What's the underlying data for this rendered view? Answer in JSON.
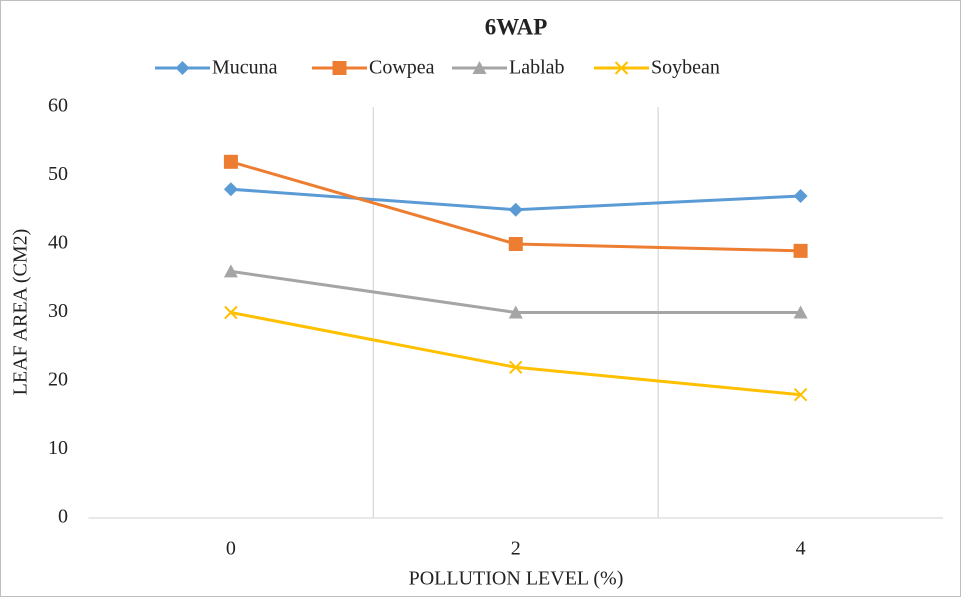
{
  "chart_data": {
    "type": "line",
    "title": "6WAP",
    "x_label": "POLLUTION LEVEL (%)",
    "y_label": "LEAF AREA (CM2)",
    "categories": [
      "0",
      "2",
      "4"
    ],
    "series": [
      {
        "name": "Mucuna",
        "color": "#5b9bd5",
        "marker": "diamond",
        "values": [
          48,
          45,
          47
        ]
      },
      {
        "name": "Cowpea",
        "color": "#ed7d31",
        "marker": "square",
        "values": [
          52,
          40,
          39
        ]
      },
      {
        "name": "Lablab",
        "color": "#a5a5a5",
        "marker": "triangle",
        "values": [
          36,
          30,
          30
        ]
      },
      {
        "name": "Soybean",
        "color": "#ffc000",
        "marker": "x",
        "values": [
          30,
          22,
          18
        ]
      }
    ],
    "ylim": [
      0,
      60
    ],
    "yticks": [
      0,
      10,
      20,
      30,
      40,
      50,
      60
    ],
    "grid": "x",
    "legend": "top"
  }
}
